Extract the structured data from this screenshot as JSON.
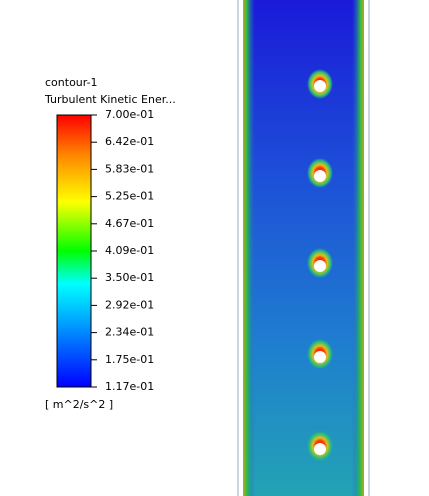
{
  "legend": {
    "title": "contour-1",
    "quantity": "Turbulent Kinetic Ener...",
    "ticks": [
      "7.00e-01",
      "6.42e-01",
      "5.83e-01",
      "5.25e-01",
      "4.67e-01",
      "4.09e-01",
      "3.50e-01",
      "2.92e-01",
      "2.34e-01",
      "1.75e-01",
      "1.17e-01"
    ],
    "unit": "[ m^2/s^2 ]"
  }
}
